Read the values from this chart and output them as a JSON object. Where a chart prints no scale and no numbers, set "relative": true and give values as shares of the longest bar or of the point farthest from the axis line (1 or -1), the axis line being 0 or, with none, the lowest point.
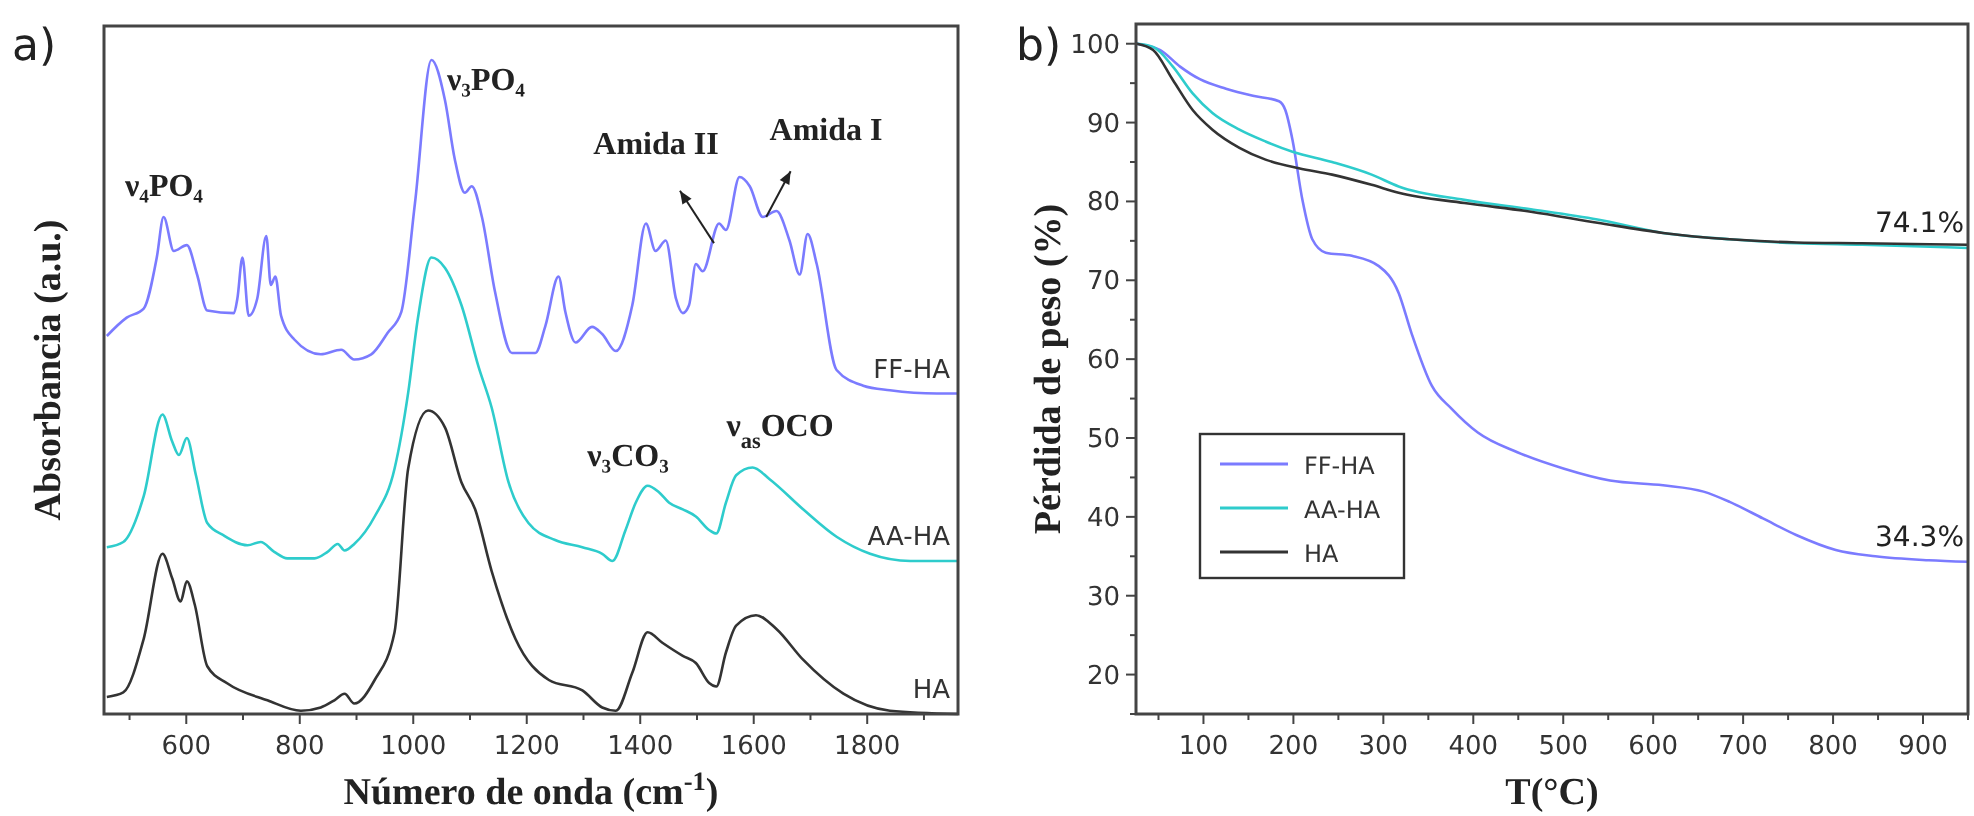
{
  "chart_data": [
    {
      "type": "line",
      "title": "a)",
      "xlabel": "Número de onda (cm$^{-1}$)",
      "ylabel": "Absorbancia (a.u.)",
      "relative": true,
      "legend": false,
      "xlim": [
        455,
        1960
      ],
      "xticks": [
        600,
        800,
        1000,
        1200,
        1400,
        1600,
        1800
      ],
      "series": [
        {
          "name": "FF-HA",
          "color": "#7b7bff",
          "x": [
            460,
            495,
            525,
            548,
            560,
            578,
            601,
            619,
            637,
            684,
            690,
            699,
            710,
            725,
            741,
            749,
            757,
            767,
            790,
            837,
            873,
            896,
            926,
            955,
            979,
            1003,
            1032,
            1056,
            1073,
            1091,
            1103,
            1121,
            1144,
            1174,
            1215,
            1233,
            1256,
            1268,
            1286,
            1315,
            1333,
            1357,
            1386,
            1410,
            1427,
            1445,
            1463,
            1475,
            1486,
            1498,
            1510,
            1539,
            1551,
            1575,
            1593,
            1616,
            1640,
            1663,
            1681,
            1695,
            1711,
            1746,
            1793,
            1840,
            1923,
            1960
          ],
          "values": [
            0.578,
            0.606,
            0.62,
            0.698,
            0.76,
            0.708,
            0.717,
            0.672,
            0.617,
            0.613,
            0.635,
            0.698,
            0.609,
            0.635,
            0.731,
            0.656,
            0.669,
            0.609,
            0.573,
            0.55,
            0.557,
            0.542,
            0.55,
            0.583,
            0.615,
            0.781,
            1.0,
            0.938,
            0.849,
            0.797,
            0.807,
            0.76,
            0.646,
            0.552,
            0.552,
            0.594,
            0.669,
            0.615,
            0.568,
            0.592,
            0.581,
            0.555,
            0.625,
            0.75,
            0.708,
            0.724,
            0.635,
            0.613,
            0.625,
            0.688,
            0.677,
            0.75,
            0.74,
            0.821,
            0.807,
            0.76,
            0.769,
            0.724,
            0.672,
            0.734,
            0.688,
            0.526,
            0.502,
            0.495,
            0.49,
            0.49
          ]
        },
        {
          "name": "AA-HA",
          "color": "#2ecccc",
          "x": [
            460,
            489,
            525,
            558,
            575,
            587,
            601,
            617,
            637,
            666,
            708,
            731,
            755,
            778,
            826,
            849,
            867,
            879,
            896,
            932,
            967,
            991,
            1008,
            1032,
            1056,
            1085,
            1115,
            1138,
            1168,
            1203,
            1250,
            1298,
            1333,
            1351,
            1374,
            1392,
            1413,
            1433,
            1451,
            1475,
            1498,
            1522,
            1534,
            1551,
            1569,
            1598,
            1628,
            1687,
            1746,
            1805,
            1876,
            1960
          ],
          "values": [
            0.255,
            0.263,
            0.333,
            0.458,
            0.417,
            0.396,
            0.422,
            0.365,
            0.292,
            0.273,
            0.258,
            0.263,
            0.248,
            0.238,
            0.238,
            0.248,
            0.26,
            0.25,
            0.26,
            0.302,
            0.375,
            0.491,
            0.604,
            0.698,
            0.682,
            0.625,
            0.531,
            0.469,
            0.354,
            0.292,
            0.266,
            0.255,
            0.245,
            0.234,
            0.281,
            0.323,
            0.349,
            0.339,
            0.323,
            0.313,
            0.302,
            0.281,
            0.276,
            0.323,
            0.365,
            0.377,
            0.359,
            0.313,
            0.271,
            0.245,
            0.234,
            0.234
          ]
        },
        {
          "name": "HA",
          "color": "#333333",
          "x": [
            460,
            489,
            525,
            558,
            575,
            590,
            601,
            615,
            637,
            672,
            743,
            802,
            837,
            861,
            879,
            896,
            932,
            967,
            991,
            1026,
            1056,
            1085,
            1109,
            1138,
            1180,
            1239,
            1298,
            1333,
            1357,
            1386,
            1413,
            1439,
            1475,
            1498,
            1522,
            1534,
            1551,
            1569,
            1604,
            1640,
            1687,
            1758,
            1840,
            1960
          ],
          "values": [
            0.026,
            0.033,
            0.115,
            0.245,
            0.208,
            0.172,
            0.203,
            0.167,
            0.073,
            0.047,
            0.021,
            0.005,
            0.01,
            0.021,
            0.031,
            0.016,
            0.052,
            0.125,
            0.375,
            0.464,
            0.438,
            0.354,
            0.313,
            0.219,
            0.115,
            0.052,
            0.036,
            0.01,
            0.005,
            0.063,
            0.125,
            0.109,
            0.089,
            0.078,
            0.047,
            0.042,
            0.094,
            0.135,
            0.151,
            0.13,
            0.083,
            0.031,
            0.005,
            0
          ]
        }
      ],
      "annotations": [
        "ν₄PO₄",
        "ν₃PO₄",
        "Amida II",
        "Amida I",
        "ν₃CO₃",
        "ν$_{as}$OCO"
      ]
    },
    {
      "type": "line",
      "title": "b)",
      "xlabel": "T(°C)",
      "ylabel": "Pérdida de peso (%)",
      "legend": "bottom left",
      "xlim": [
        25,
        950
      ],
      "xticks": [
        100,
        200,
        300,
        400,
        500,
        600,
        700,
        800,
        900
      ],
      "ylim": [
        15,
        102.5
      ],
      "yticks": [
        20,
        30,
        40,
        50,
        60,
        70,
        80,
        90,
        100
      ],
      "series": [
        {
          "name": "FF-HA",
          "color": "#7b7bff",
          "x": [
            26,
            52,
            74,
            96,
            125,
            155,
            184,
            191,
            199,
            210,
            221,
            236,
            265,
            295,
            317,
            331,
            354,
            376,
            405,
            449,
            501,
            552,
            611,
            656,
            685,
            722,
            759,
            803,
            847,
            906,
            950
          ],
          "values": [
            100,
            99.2,
            97.1,
            95.5,
            94.3,
            93.4,
            92.7,
            91.6,
            87.8,
            80.2,
            75.2,
            73.5,
            73.1,
            71.8,
            68.4,
            63.4,
            56.6,
            53.7,
            50.7,
            48.2,
            46.1,
            44.6,
            44.0,
            43.2,
            41.9,
            39.8,
            37.7,
            35.8,
            35.0,
            34.5,
            34.3
          ]
        },
        {
          "name": "AA-HA",
          "color": "#2ecccc",
          "x": [
            26,
            44,
            66,
            88,
            110,
            140,
            169,
            199,
            243,
            287,
            317,
            390,
            464,
            538,
            611,
            685,
            759,
            832,
            950
          ],
          "values": [
            100,
            99.6,
            97.1,
            93.7,
            91.2,
            89.1,
            87.6,
            86.3,
            85.0,
            83.4,
            81.9,
            80.2,
            79.0,
            77.7,
            76.0,
            75.2,
            74.7,
            74.5,
            74.1
          ]
        },
        {
          "name": "HA",
          "color": "#333333",
          "x": [
            26,
            44,
            66,
            88,
            110,
            140,
            169,
            206,
            243,
            287,
            317,
            390,
            464,
            538,
            611,
            685,
            759,
            832,
            950
          ],
          "values": [
            100,
            99.2,
            95.4,
            91.6,
            89.1,
            86.8,
            85.3,
            84.2,
            83.4,
            82.1,
            81.1,
            79.8,
            78.7,
            77.3,
            76.0,
            75.2,
            74.8,
            74.7,
            74.5
          ]
        }
      ],
      "annotations": [
        {
          "text": "74.1%",
          "x": 950,
          "y": 74.1
        },
        {
          "text": "34.3%",
          "x": 950,
          "y": 34.3
        }
      ]
    }
  ]
}
